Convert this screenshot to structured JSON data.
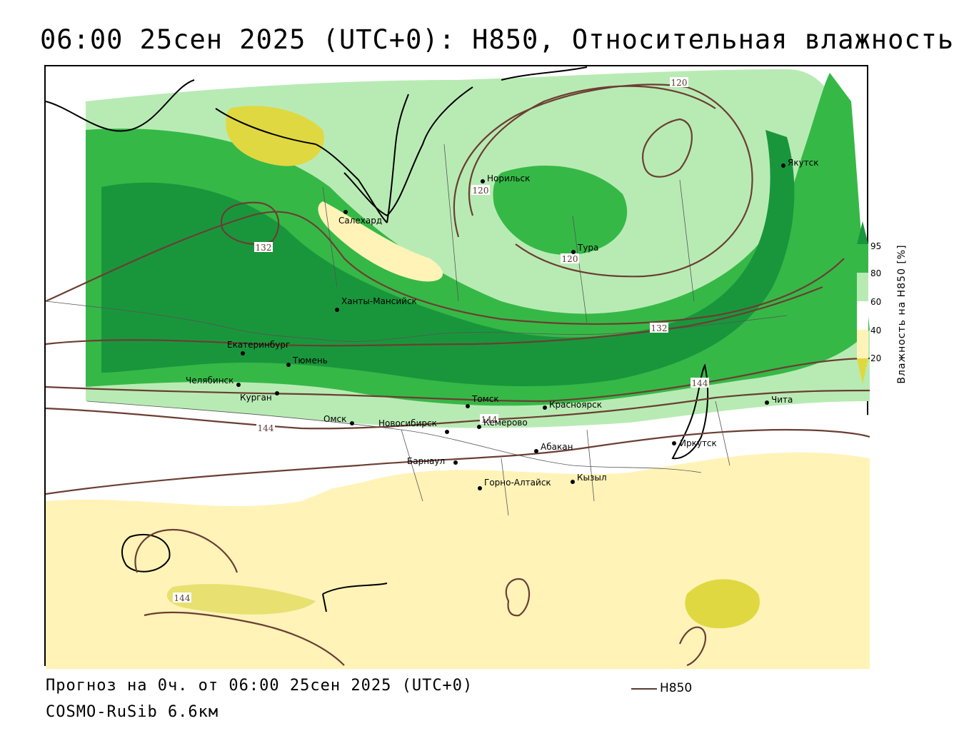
{
  "title": "06:00 25сен 2025 (UTC+0): H850, Относительная влажность",
  "footer": {
    "forecast": "Прогноз на 0ч. от 06:00 25сен 2025 (UTC+0)",
    "model": "COSMO-RuSib 6.6км",
    "legend_label": "H850"
  },
  "colorbar": {
    "title": "Влажность на H850 [%]",
    "ticks": [
      "95",
      "80",
      "60",
      "40",
      "20"
    ],
    "colors": {
      "c95": "#19963c",
      "c80": "#36b847",
      "c60": "#b8ebb4",
      "c40": "#ffffff",
      "c20": "#fff3b8",
      "c0": "#e0d840"
    }
  },
  "colors": {
    "contour": "#6b3e33",
    "border": "#000000",
    "admin_border": "#555555"
  },
  "contour_labels": [
    "120",
    "120",
    "120",
    "132",
    "132",
    "144",
    "144",
    "144",
    "144"
  ],
  "cities": [
    {
      "name": "Норильск"
    },
    {
      "name": "Якутск"
    },
    {
      "name": "Салехард"
    },
    {
      "name": "Тура"
    },
    {
      "name": "Ханты-Мансийск"
    },
    {
      "name": "Екатеринбург"
    },
    {
      "name": "Тюмень"
    },
    {
      "name": "Челябинск"
    },
    {
      "name": "Курган"
    },
    {
      "name": "Томск"
    },
    {
      "name": "Красноярск"
    },
    {
      "name": "Омск"
    },
    {
      "name": "Новосибирск"
    },
    {
      "name": "Кемерово"
    },
    {
      "name": "Абакан"
    },
    {
      "name": "Барнаул"
    },
    {
      "name": "Горно-Алтайск"
    },
    {
      "name": "Кызыл"
    },
    {
      "name": "Иркутск"
    },
    {
      "name": "Чита"
    }
  ]
}
